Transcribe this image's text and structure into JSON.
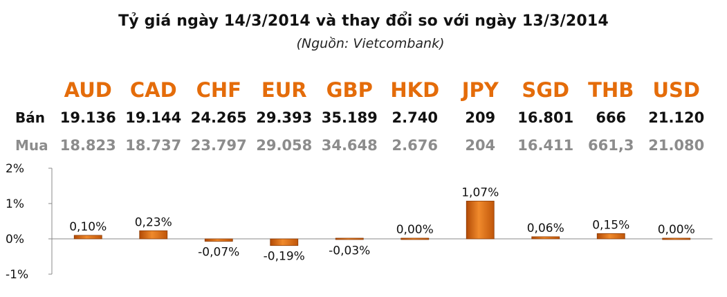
{
  "title": "Tỷ giá ngày 14/3/2014 và thay đổi so với ngày 13/3/2014",
  "subtitle": "(Nguồn: Vietcombank)",
  "row_labels": {
    "ban": "Bán",
    "mua": "Mua"
  },
  "chart_data": {
    "type": "bar",
    "title": "Tỷ giá ngày 14/3/2014 và thay đổi so với ngày 13/3/2014",
    "subtitle": "(Nguồn: Vietcombank)",
    "categories": [
      "AUD",
      "CAD",
      "CHF",
      "EUR",
      "GBP",
      "HKD",
      "JPY",
      "SGD",
      "THB",
      "USD"
    ],
    "series": [
      {
        "values": [
          0.1,
          0.23,
          -0.07,
          -0.19,
          -0.03,
          0.0,
          1.07,
          0.06,
          0.15,
          0.0
        ]
      }
    ],
    "value_labels": [
      "0,10%",
      "0,23%",
      "-0,07%",
      "-0,19%",
      "-0,03%",
      "0,00%",
      "1,07%",
      "0,06%",
      "0,15%",
      "0,00%"
    ],
    "table": {
      "ban": [
        "19.136",
        "19.144",
        "24.265",
        "29.393",
        "35.189",
        "2.740",
        "209",
        "16.801",
        "666",
        "21.120"
      ],
      "mua": [
        "18.823",
        "18.737",
        "23.797",
        "29.058",
        "34.648",
        "2.676",
        "204",
        "16.411",
        "661,3",
        "21.080"
      ]
    },
    "ylim": [
      -1,
      2
    ],
    "yticks": [
      2,
      1,
      0,
      -1
    ],
    "ytick_labels": [
      "2%",
      "1%",
      "0%",
      "-1%"
    ],
    "xlabel": "",
    "ylabel": "",
    "grid": false,
    "legend": "none",
    "colors": {
      "bar": "#e46c0a",
      "bar_dark": "#8a3b05",
      "currency_header": "#e46c0a",
      "ban_text": "#111111",
      "mua_text": "#8c8c8c"
    }
  }
}
